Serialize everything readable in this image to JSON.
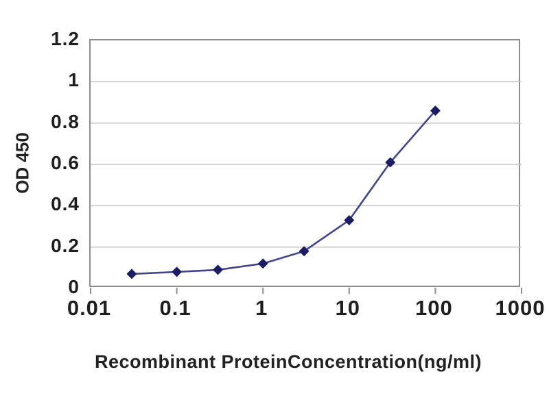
{
  "chart_data": {
    "type": "line",
    "title": "",
    "xlabel": "Recombinant ProteinConcentration(ng/ml)",
    "ylabel": "OD 450",
    "x_scale": "log",
    "xlim": [
      0.01,
      1000
    ],
    "ylim": [
      0,
      1.2
    ],
    "x_ticks": [
      {
        "value": 0.01,
        "label": "0.01"
      },
      {
        "value": 0.1,
        "label": "0.1"
      },
      {
        "value": 1,
        "label": "1"
      },
      {
        "value": 10,
        "label": "10"
      },
      {
        "value": 100,
        "label": "100"
      },
      {
        "value": 1000,
        "label": "1000"
      }
    ],
    "y_ticks": [
      {
        "value": 0,
        "label": "0"
      },
      {
        "value": 0.2,
        "label": "0.2"
      },
      {
        "value": 0.4,
        "label": "0.4"
      },
      {
        "value": 0.6,
        "label": "0.6"
      },
      {
        "value": 0.8,
        "label": "0.8"
      },
      {
        "value": 1,
        "label": "1"
      },
      {
        "value": 1.2,
        "label": "1.2"
      }
    ],
    "grid": "horizontal",
    "legend": "none",
    "series": [
      {
        "x": [
          0.03,
          0.1,
          0.3,
          1,
          3,
          10,
          30,
          100
        ],
        "y": [
          0.07,
          0.08,
          0.09,
          0.12,
          0.18,
          0.33,
          0.61,
          0.86
        ],
        "marker": "diamond",
        "line_color": "#44448a",
        "marker_color": "#1c1c62"
      }
    ],
    "colors": {
      "background": "#ffffff",
      "plot_border": "#8c8c8c",
      "gridline": "#c6c6c6",
      "tick_mark": "#8c8c8c",
      "text": "#1e1e1e"
    }
  }
}
